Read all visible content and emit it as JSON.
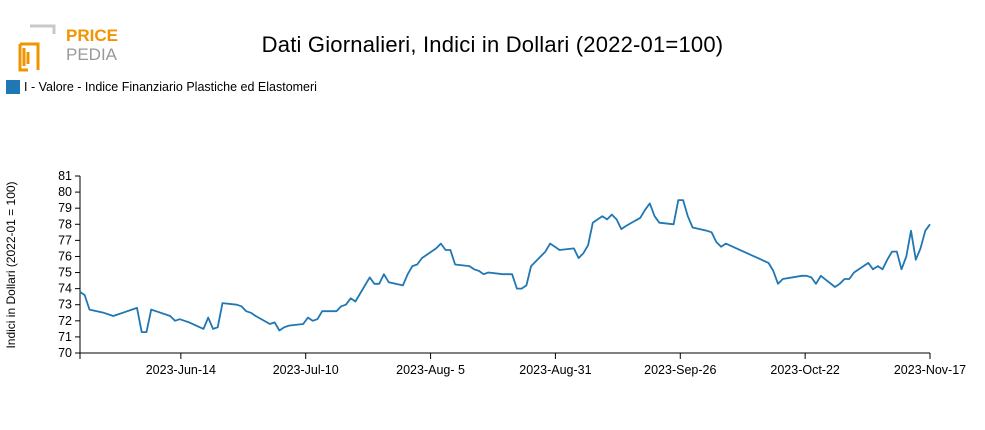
{
  "brand": {
    "line1": "PRICE",
    "line2": "PEDIA",
    "accent": "#f29400",
    "secondary": "#999999"
  },
  "chart_data": {
    "type": "line",
    "title": "Dati Giornalieri, Indici in Dollari (2022-01=100)",
    "ylabel": "Indici in Dollari (2022-01 = 100)",
    "xlabel": "",
    "ylim": [
      70,
      81
    ],
    "yticks": [
      70,
      71,
      72,
      73,
      74,
      75,
      76,
      77,
      78,
      79,
      80,
      81
    ],
    "xlim": [
      "2023-05-24",
      "2023-11-17"
    ],
    "xticks": [
      {
        "date": "2023-06-14",
        "label": "2023-Jun-14"
      },
      {
        "date": "2023-07-10",
        "label": "2023-Jul-10"
      },
      {
        "date": "2023-08-05",
        "label": "2023-Aug- 5"
      },
      {
        "date": "2023-08-31",
        "label": "2023-Aug-31"
      },
      {
        "date": "2023-09-26",
        "label": "2023-Sep-26"
      },
      {
        "date": "2023-10-22",
        "label": "2023-Oct-22"
      },
      {
        "date": "2023-11-17",
        "label": "2023-Nov-17"
      }
    ],
    "grid": false,
    "legend_position": "top-left",
    "series": [
      {
        "name": "I - Valore - Indice Finanziario Plastiche ed Elastomeri",
        "color": "#1f77b4",
        "points": [
          [
            "2023-05-24",
            73.8
          ],
          [
            "2023-05-25",
            73.6
          ],
          [
            "2023-05-26",
            72.7
          ],
          [
            "2023-05-29",
            72.5
          ],
          [
            "2023-05-30",
            72.4
          ],
          [
            "2023-05-31",
            72.3
          ],
          [
            "2023-06-01",
            72.4
          ],
          [
            "2023-06-02",
            72.5
          ],
          [
            "2023-06-05",
            72.8
          ],
          [
            "2023-06-06",
            71.3
          ],
          [
            "2023-06-07",
            71.3
          ],
          [
            "2023-06-08",
            72.7
          ],
          [
            "2023-06-09",
            72.6
          ],
          [
            "2023-06-12",
            72.3
          ],
          [
            "2023-06-13",
            72.0
          ],
          [
            "2023-06-14",
            72.1
          ],
          [
            "2023-06-15",
            72.0
          ],
          [
            "2023-06-16",
            71.9
          ],
          [
            "2023-06-19",
            71.5
          ],
          [
            "2023-06-20",
            72.2
          ],
          [
            "2023-06-21",
            71.5
          ],
          [
            "2023-06-22",
            71.6
          ],
          [
            "2023-06-23",
            73.1
          ],
          [
            "2023-06-26",
            73.0
          ],
          [
            "2023-06-27",
            72.9
          ],
          [
            "2023-06-28",
            72.6
          ],
          [
            "2023-06-29",
            72.5
          ],
          [
            "2023-06-30",
            72.3
          ],
          [
            "2023-07-03",
            71.8
          ],
          [
            "2023-07-04",
            71.9
          ],
          [
            "2023-07-05",
            71.4
          ],
          [
            "2023-07-06",
            71.6
          ],
          [
            "2023-07-07",
            71.7
          ],
          [
            "2023-07-10",
            71.8
          ],
          [
            "2023-07-11",
            72.2
          ],
          [
            "2023-07-12",
            72.0
          ],
          [
            "2023-07-13",
            72.1
          ],
          [
            "2023-07-14",
            72.6
          ],
          [
            "2023-07-17",
            72.6
          ],
          [
            "2023-07-18",
            72.9
          ],
          [
            "2023-07-19",
            73.0
          ],
          [
            "2023-07-20",
            73.4
          ],
          [
            "2023-07-21",
            73.2
          ],
          [
            "2023-07-24",
            74.7
          ],
          [
            "2023-07-25",
            74.3
          ],
          [
            "2023-07-26",
            74.3
          ],
          [
            "2023-07-27",
            74.9
          ],
          [
            "2023-07-28",
            74.4
          ],
          [
            "2023-07-31",
            74.2
          ],
          [
            "2023-08-01",
            74.9
          ],
          [
            "2023-08-02",
            75.4
          ],
          [
            "2023-08-03",
            75.5
          ],
          [
            "2023-08-04",
            75.9
          ],
          [
            "2023-08-07",
            76.5
          ],
          [
            "2023-08-08",
            76.8
          ],
          [
            "2023-08-09",
            76.4
          ],
          [
            "2023-08-10",
            76.4
          ],
          [
            "2023-08-11",
            75.5
          ],
          [
            "2023-08-14",
            75.4
          ],
          [
            "2023-08-15",
            75.2
          ],
          [
            "2023-08-16",
            75.1
          ],
          [
            "2023-08-17",
            74.9
          ],
          [
            "2023-08-18",
            75.0
          ],
          [
            "2023-08-21",
            74.9
          ],
          [
            "2023-08-22",
            74.9
          ],
          [
            "2023-08-23",
            74.9
          ],
          [
            "2023-08-24",
            74.0
          ],
          [
            "2023-08-25",
            74.0
          ],
          [
            "2023-08-26",
            74.2
          ],
          [
            "2023-08-27",
            75.4
          ],
          [
            "2023-08-28",
            75.7
          ],
          [
            "2023-08-29",
            76.0
          ],
          [
            "2023-08-30",
            76.3
          ],
          [
            "2023-08-31",
            76.8
          ],
          [
            "2023-09-01",
            76.6
          ],
          [
            "2023-09-02",
            76.4
          ],
          [
            "2023-09-05",
            76.5
          ],
          [
            "2023-09-06",
            75.9
          ],
          [
            "2023-09-07",
            76.2
          ],
          [
            "2023-09-08",
            76.7
          ],
          [
            "2023-09-09",
            78.1
          ],
          [
            "2023-09-10",
            78.3
          ],
          [
            "2023-09-11",
            78.5
          ],
          [
            "2023-09-12",
            78.3
          ],
          [
            "2023-09-13",
            78.6
          ],
          [
            "2023-09-14",
            78.3
          ],
          [
            "2023-09-15",
            77.7
          ],
          [
            "2023-09-16",
            77.9
          ],
          [
            "2023-09-19",
            78.4
          ],
          [
            "2023-09-20",
            78.9
          ],
          [
            "2023-09-21",
            79.3
          ],
          [
            "2023-09-22",
            78.5
          ],
          [
            "2023-09-23",
            78.1
          ],
          [
            "2023-09-26",
            78.0
          ],
          [
            "2023-09-27",
            79.5
          ],
          [
            "2023-09-28",
            79.5
          ],
          [
            "2023-09-29",
            78.5
          ],
          [
            "2023-09-30",
            77.8
          ],
          [
            "2023-10-03",
            77.6
          ],
          [
            "2023-10-04",
            77.5
          ],
          [
            "2023-10-05",
            76.9
          ],
          [
            "2023-10-06",
            76.6
          ],
          [
            "2023-10-07",
            76.8
          ],
          [
            "2023-10-16",
            75.6
          ],
          [
            "2023-10-17",
            75.1
          ],
          [
            "2023-10-18",
            74.3
          ],
          [
            "2023-10-19",
            74.6
          ],
          [
            "2023-10-23",
            74.8
          ],
          [
            "2023-10-24",
            74.8
          ],
          [
            "2023-10-25",
            74.7
          ],
          [
            "2023-10-26",
            74.3
          ],
          [
            "2023-10-27",
            74.8
          ],
          [
            "2023-10-30",
            74.1
          ],
          [
            "2023-10-31",
            74.3
          ],
          [
            "2023-11-01",
            74.6
          ],
          [
            "2023-11-02",
            74.6
          ],
          [
            "2023-11-03",
            75.0
          ],
          [
            "2023-11-06",
            75.6
          ],
          [
            "2023-11-07",
            75.2
          ],
          [
            "2023-11-08",
            75.4
          ],
          [
            "2023-11-09",
            75.2
          ],
          [
            "2023-11-10",
            75.8
          ],
          [
            "2023-11-11",
            76.3
          ],
          [
            "2023-11-12",
            76.3
          ],
          [
            "2023-11-13",
            75.2
          ],
          [
            "2023-11-14",
            76.0
          ],
          [
            "2023-11-15",
            77.6
          ],
          [
            "2023-11-16",
            75.8
          ],
          [
            "2023-11-17",
            76.5
          ],
          [
            "2023-11-18",
            77.6
          ],
          [
            "2023-11-19",
            78.0
          ]
        ]
      }
    ]
  }
}
